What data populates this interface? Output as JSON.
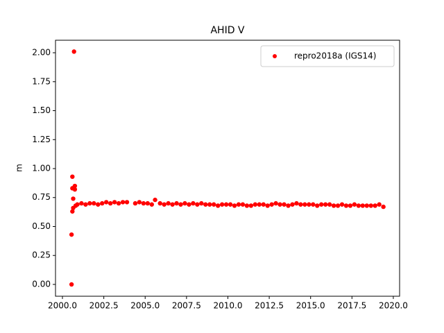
{
  "chart_data": {
    "type": "scatter",
    "title": "AHID V",
    "y_label": "m",
    "x": [
      2000.55,
      2000.55,
      2000.6,
      2000.6,
      2000.6,
      2000.65,
      2000.65,
      2000.7,
      2000.75,
      2000.75,
      2000.8,
      2000.9,
      2001.15,
      2001.4,
      2001.65,
      2001.9,
      2002.15,
      2002.4,
      2002.65,
      2002.9,
      2003.15,
      2003.4,
      2003.65,
      2003.9,
      2004.4,
      2004.65,
      2004.9,
      2005.15,
      2005.4,
      2005.6,
      2005.9,
      2006.15,
      2006.4,
      2006.65,
      2006.9,
      2007.15,
      2007.4,
      2007.65,
      2007.9,
      2008.15,
      2008.4,
      2008.65,
      2008.9,
      2009.15,
      2009.4,
      2009.65,
      2009.9,
      2010.15,
      2010.4,
      2010.65,
      2010.9,
      2011.15,
      2011.4,
      2011.65,
      2011.9,
      2012.15,
      2012.4,
      2012.65,
      2012.9,
      2013.15,
      2013.4,
      2013.65,
      2013.9,
      2014.15,
      2014.4,
      2014.65,
      2014.9,
      2015.15,
      2015.4,
      2015.65,
      2015.9,
      2016.15,
      2016.4,
      2016.65,
      2016.9,
      2017.15,
      2017.4,
      2017.65,
      2017.9,
      2018.15,
      2018.4,
      2018.65,
      2018.9,
      2019.15,
      2019.4
    ],
    "series": [
      {
        "name": "repro2018a (IGS14)",
        "color": "#ff0000",
        "values": [
          0.0,
          0.43,
          0.63,
          0.83,
          0.93,
          0.66,
          0.74,
          2.01,
          0.85,
          0.82,
          0.68,
          0.69,
          0.7,
          0.69,
          0.7,
          0.7,
          0.69,
          0.7,
          0.71,
          0.7,
          0.71,
          0.7,
          0.71,
          0.71,
          0.7,
          0.71,
          0.7,
          0.7,
          0.69,
          0.73,
          0.7,
          0.69,
          0.7,
          0.69,
          0.7,
          0.69,
          0.7,
          0.69,
          0.7,
          0.69,
          0.7,
          0.69,
          0.69,
          0.69,
          0.68,
          0.69,
          0.69,
          0.69,
          0.68,
          0.69,
          0.69,
          0.68,
          0.68,
          0.69,
          0.69,
          0.69,
          0.68,
          0.69,
          0.7,
          0.69,
          0.69,
          0.68,
          0.69,
          0.7,
          0.69,
          0.69,
          0.69,
          0.69,
          0.68,
          0.69,
          0.69,
          0.69,
          0.68,
          0.68,
          0.69,
          0.68,
          0.68,
          0.69,
          0.68,
          0.68,
          0.68,
          0.68,
          0.68,
          0.69,
          0.67
        ]
      }
    ],
    "xlim": [
      1999.58,
      2020.38
    ],
    "ylim": [
      -0.102,
      2.108
    ],
    "xticks": [
      {
        "value": 2000,
        "label": "2000.0"
      },
      {
        "value": 2002.5,
        "label": "2002.5"
      },
      {
        "value": 2005,
        "label": "2005.0"
      },
      {
        "value": 2007.5,
        "label": "2007.5"
      },
      {
        "value": 2010,
        "label": "2010.0"
      },
      {
        "value": 2012.5,
        "label": "2012.5"
      },
      {
        "value": 2015,
        "label": "2015.0"
      },
      {
        "value": 2017.5,
        "label": "2017.5"
      },
      {
        "value": 2020,
        "label": "2020.0"
      }
    ],
    "yticks": [
      {
        "value": 0,
        "label": "0.00"
      },
      {
        "value": 0.25,
        "label": "0.25"
      },
      {
        "value": 0.5,
        "label": "0.50"
      },
      {
        "value": 0.75,
        "label": "0.75"
      },
      {
        "value": 1,
        "label": "1.00"
      },
      {
        "value": 1.25,
        "label": "1.25"
      },
      {
        "value": 1.5,
        "label": "1.50"
      },
      {
        "value": 1.75,
        "label": "1.75"
      },
      {
        "value": 2,
        "label": "2.00"
      }
    ],
    "legend": "upper right",
    "grid": false
  }
}
